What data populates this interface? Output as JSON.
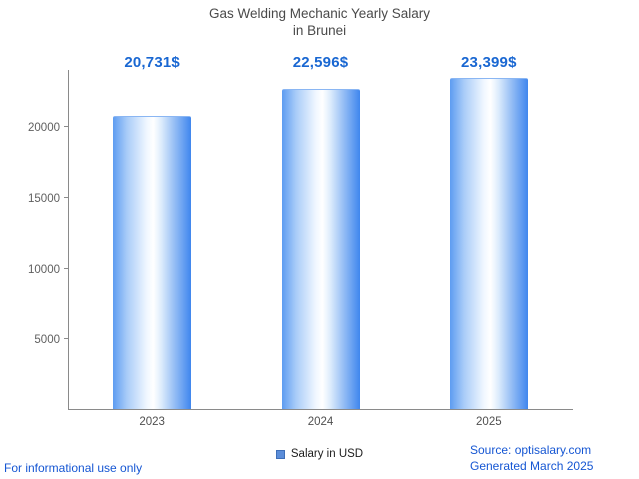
{
  "title": {
    "line1": "Gas Welding Mechanic Yearly Salary",
    "line2": "in Brunei"
  },
  "chart_data": {
    "type": "bar",
    "categories": [
      "2023",
      "2024",
      "2025"
    ],
    "values": [
      20731,
      22596,
      23399
    ],
    "value_labels": [
      "20,731$",
      "22,596$",
      "23,399$"
    ],
    "title": "Gas Welding Mechanic Yearly Salary in Brunei",
    "xlabel": "",
    "ylabel": "",
    "ylim": [
      0,
      24000
    ],
    "yticks": [
      5000,
      10000,
      15000,
      20000
    ],
    "legend": [
      "Salary in USD"
    ],
    "legend_position": "bottom",
    "grid": false
  },
  "footer": {
    "disclaimer": "For informational use only",
    "source": "Source: optisalary.com",
    "generated": "Generated March 2025"
  },
  "colors": {
    "value_label_blue": "#1967d2",
    "footer_link_blue": "#1556d3",
    "bar_edge_blue": "#3f86ee",
    "bar_center": "#ffffff",
    "legend_swatch_blue": "#5b8dd9",
    "axis_gray": "#8a8a8a",
    "title_gray": "#4a4a4a"
  }
}
